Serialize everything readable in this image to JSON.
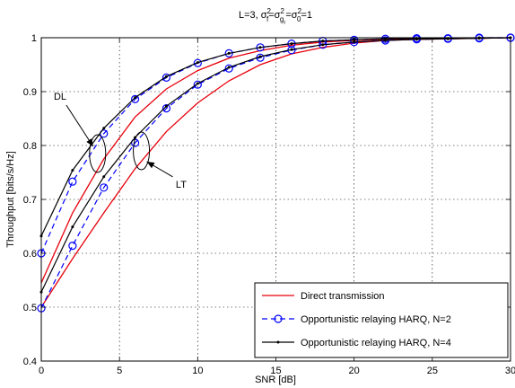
{
  "chart_data": {
    "type": "line",
    "title": {
      "prefix": "L=3, ",
      "suffix": "=1"
    },
    "xlabel": "SNR [dB]",
    "ylabel": "Throughput [bits/s/Hz]",
    "xlim": [
      0,
      30
    ],
    "ylim": [
      0.4,
      1.0
    ],
    "xticks": [
      "0",
      "5",
      "10",
      "15",
      "20",
      "25",
      "30"
    ],
    "yticks": [
      "0.4",
      "0.5",
      "0.6",
      "0.7",
      "0.8",
      "0.9",
      "1"
    ],
    "grid": true,
    "legend_position": "bottom-right",
    "x": [
      0,
      2,
      4,
      6,
      8,
      10,
      12,
      14,
      16,
      18,
      20,
      22,
      24,
      26,
      28,
      30
    ],
    "series": [
      {
        "name": "Direct transmission",
        "group": "DL",
        "color": "#e8000b",
        "style": "solid",
        "marker": "none",
        "values": [
          0.545,
          0.675,
          0.775,
          0.853,
          0.905,
          0.939,
          0.962,
          0.976,
          0.986,
          0.992,
          0.995,
          0.997,
          0.998,
          0.999,
          0.999,
          1.0
        ]
      },
      {
        "name": "Direct transmission",
        "group": "LT",
        "color": "#e8000b",
        "style": "solid",
        "marker": "none",
        "values": [
          0.5,
          0.59,
          0.675,
          0.757,
          0.826,
          0.879,
          0.92,
          0.95,
          0.97,
          0.982,
          0.99,
          0.995,
          0.997,
          0.998,
          0.999,
          1.0
        ]
      },
      {
        "name": "Opportunistic relaying HARQ, N=2",
        "group": "DL",
        "color": "#0000ff",
        "style": "dashed",
        "marker": "circle",
        "values": [
          0.6,
          0.733,
          0.822,
          0.886,
          0.926,
          0.953,
          0.971,
          0.982,
          0.989,
          0.994,
          0.996,
          0.998,
          0.999,
          0.999,
          1.0,
          1.0
        ]
      },
      {
        "name": "Opportunistic relaying HARQ, N=2",
        "group": "LT",
        "color": "#0000ff",
        "style": "dashed",
        "marker": "circle",
        "values": [
          0.498,
          0.614,
          0.722,
          0.805,
          0.869,
          0.913,
          0.943,
          0.963,
          0.977,
          0.987,
          0.992,
          0.995,
          0.997,
          0.998,
          0.999,
          1.0
        ]
      },
      {
        "name": "Opportunistic relaying HARQ, N=4",
        "group": "DL",
        "color": "#000000",
        "style": "solid",
        "marker": "dot",
        "values": [
          0.632,
          0.754,
          0.832,
          0.889,
          0.928,
          0.954,
          0.971,
          0.982,
          0.989,
          0.994,
          0.996,
          0.998,
          0.999,
          0.999,
          1.0,
          1.0
        ]
      },
      {
        "name": "Opportunistic relaying HARQ, N=4",
        "group": "LT",
        "color": "#000000",
        "style": "solid",
        "marker": "dot",
        "values": [
          0.528,
          0.649,
          0.742,
          0.815,
          0.873,
          0.915,
          0.945,
          0.965,
          0.978,
          0.987,
          0.992,
          0.995,
          0.997,
          0.998,
          0.999,
          1.0
        ]
      }
    ],
    "legend": [
      {
        "label": "Direct transmission",
        "color": "#e8000b",
        "style": "solid",
        "marker": "none"
      },
      {
        "label": "Opportunistic relaying HARQ, N=2",
        "color": "#0000ff",
        "style": "dashed",
        "marker": "circle"
      },
      {
        "label": "Opportunistic relaying HARQ, N=4",
        "color": "#000000",
        "style": "solid",
        "marker": "dot"
      }
    ],
    "annotations": [
      {
        "text": "DL",
        "group": "DL"
      },
      {
        "text": "LT",
        "group": "LT"
      }
    ]
  }
}
